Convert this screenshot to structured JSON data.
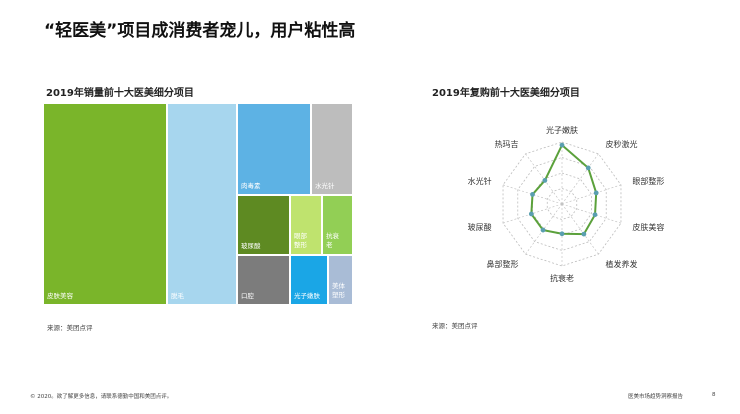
{
  "page": {
    "title": "“轻医美”项目成消费者宠儿，用户粘性高",
    "source_label": "来源：美团点评",
    "footer_left": "© 2020。欲了解更多信息，请联系德勤中国和美团点评。",
    "footer_right": "医美市场趋势洞察报告",
    "page_number": "8"
  },
  "chart_data": [
    {
      "type": "treemap",
      "title": "2019年销量前十大医美细分项目",
      "items": [
        {
          "label": "皮肤美容",
          "rank": 1,
          "color": "#7ab52a"
        },
        {
          "label": "脱毛",
          "rank": 2,
          "color": "#a7d6ee"
        },
        {
          "label": "肉毒素",
          "rank": 3,
          "color": "#5db2e4"
        },
        {
          "label": "水光针",
          "rank": 4,
          "color": "#bdbdbd"
        },
        {
          "label": "玻尿酸",
          "rank": 5,
          "color": "#5e8a22"
        },
        {
          "label": "眼部整形",
          "rank": 6,
          "color": "#bfe36e"
        },
        {
          "label": "抗衰老",
          "rank": 7,
          "color": "#92cf55"
        },
        {
          "label": "口腔",
          "rank": 8,
          "color": "#7c7c7c"
        },
        {
          "label": "光子嫩肤",
          "rank": 9,
          "color": "#1aa6e6"
        },
        {
          "label": "美体塑形",
          "rank": 10,
          "color": "#a9bcd6"
        }
      ]
    },
    {
      "type": "radar",
      "title": "2019年复购前十大医美细分项目",
      "axes": [
        "光子嫩肤",
        "皮秒激光",
        "眼部整形",
        "皮肤美容",
        "植发养发",
        "抗衰老",
        "鼻部整形",
        "玻尿酸",
        "水光针",
        "热玛吉"
      ],
      "values": [
        0.95,
        0.72,
        0.58,
        0.56,
        0.6,
        0.48,
        0.52,
        0.52,
        0.5,
        0.47
      ],
      "color": "#5ba13b",
      "point_color": "#5a9fb0",
      "grid_color": "#bdbdbd",
      "grid_style": "dashed"
    }
  ]
}
